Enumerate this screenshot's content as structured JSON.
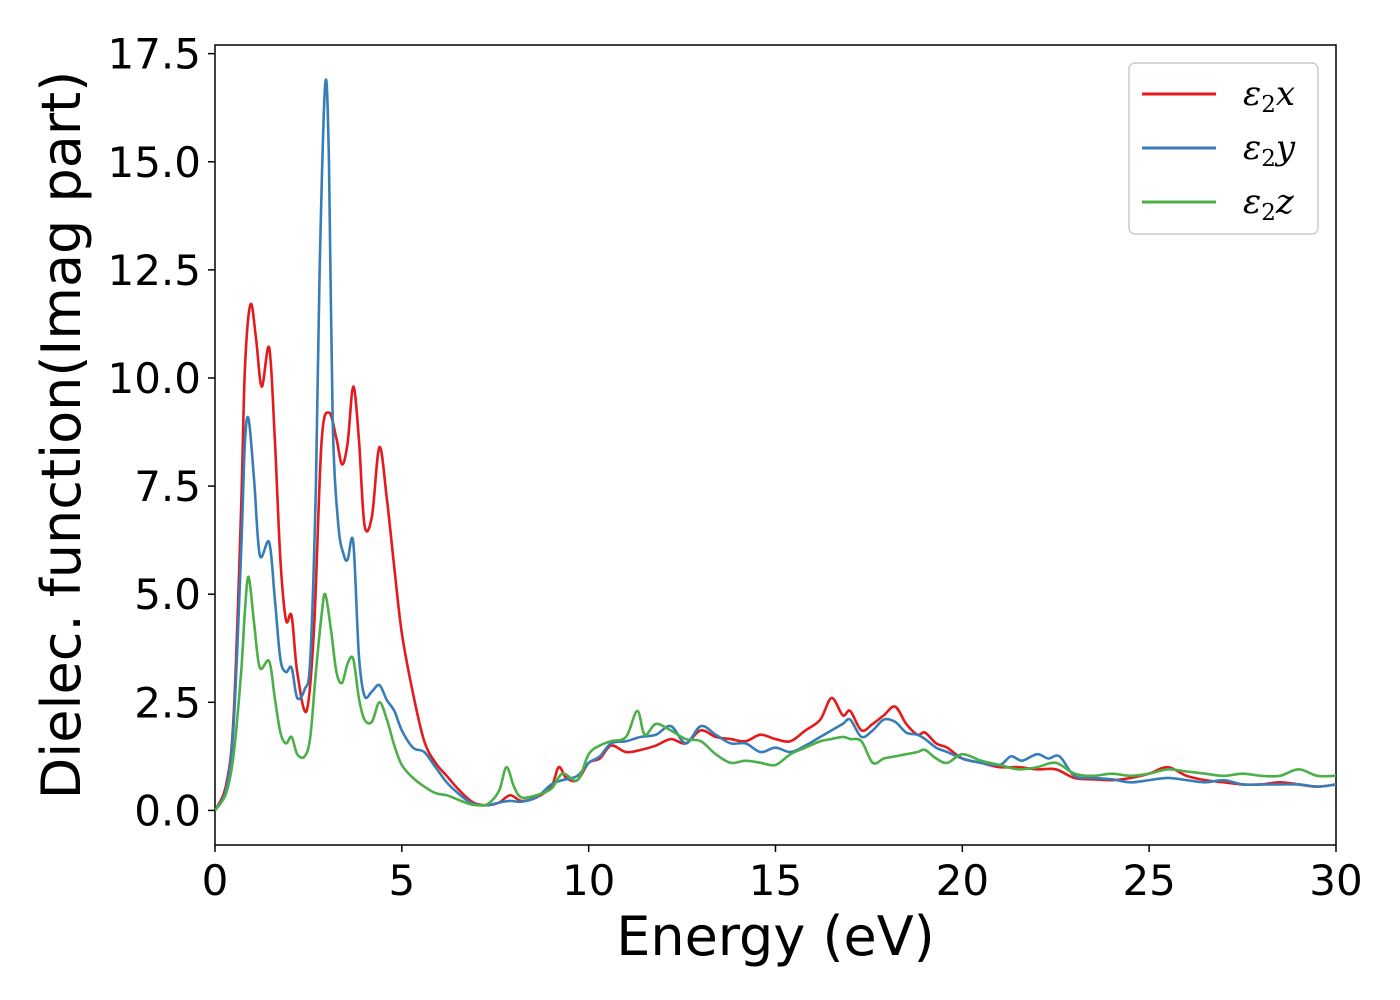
{
  "chart_data": {
    "type": "line",
    "xlabel": "Energy (eV)",
    "ylabel": "Dielec. function(Imag part)",
    "xlim": [
      0,
      30
    ],
    "ylim": [
      -0.8,
      17.7
    ],
    "xticks": [
      0,
      5,
      10,
      15,
      20,
      25,
      30
    ],
    "xtick_labels": [
      "0",
      "5",
      "10",
      "15",
      "20",
      "25",
      "30"
    ],
    "yticks": [
      0,
      2.5,
      5,
      7.5,
      10,
      12.5,
      15,
      17.5
    ],
    "ytick_labels": [
      "0.0",
      "2.5",
      "5.0",
      "7.5",
      "10.0",
      "12.5",
      "15.0",
      "17.5"
    ],
    "grid": false,
    "legend_position": "top-right",
    "series": [
      {
        "name": "ε2x",
        "label_main": "ε",
        "label_sub": "2",
        "label_tail": "x",
        "color": "#e41a1c",
        "x": [
          0,
          0.3,
          0.5,
          0.7,
          0.8,
          0.95,
          1.1,
          1.25,
          1.45,
          1.6,
          1.75,
          1.9,
          2.05,
          2.2,
          2.45,
          2.65,
          2.85,
          3.05,
          3.25,
          3.4,
          3.55,
          3.7,
          3.85,
          4.0,
          4.2,
          4.4,
          4.6,
          4.8,
          5.0,
          5.3,
          5.6,
          5.9,
          6.2,
          6.5,
          6.8,
          7.0,
          7.3,
          7.6,
          7.9,
          8.2,
          8.6,
          9.0,
          9.2,
          9.4,
          9.7,
          10.0,
          10.3,
          10.6,
          11.0,
          11.4,
          11.8,
          12.2,
          12.6,
          13.0,
          13.4,
          13.8,
          14.2,
          14.6,
          15.0,
          15.4,
          15.8,
          16.2,
          16.5,
          16.8,
          17.0,
          17.3,
          17.6,
          17.9,
          18.2,
          18.5,
          18.8,
          19.0,
          19.3,
          19.6,
          20.0,
          20.5,
          21.0,
          21.5,
          22.0,
          22.5,
          23.0,
          23.5,
          24.0,
          24.5,
          25.0,
          25.5,
          26.0,
          26.5,
          27.0,
          27.5,
          28.0,
          28.5,
          29.0,
          29.5,
          30.0
        ],
        "y": [
          0,
          0.6,
          2.2,
          7.0,
          10.2,
          11.7,
          10.9,
          9.8,
          10.7,
          8.6,
          5.8,
          4.4,
          4.5,
          3.2,
          2.3,
          4.2,
          8.5,
          9.2,
          8.6,
          8.0,
          8.5,
          9.8,
          8.6,
          6.6,
          6.8,
          8.4,
          7.2,
          5.6,
          4.1,
          2.7,
          1.6,
          1.1,
          0.8,
          0.5,
          0.25,
          0.15,
          0.12,
          0.18,
          0.35,
          0.22,
          0.3,
          0.55,
          1.0,
          0.75,
          0.7,
          1.1,
          1.2,
          1.5,
          1.35,
          1.4,
          1.5,
          1.65,
          1.55,
          1.85,
          1.7,
          1.65,
          1.6,
          1.75,
          1.65,
          1.6,
          1.85,
          2.1,
          2.6,
          2.2,
          2.3,
          1.85,
          2.0,
          2.2,
          2.4,
          2.0,
          1.75,
          1.8,
          1.55,
          1.45,
          1.2,
          1.1,
          1.0,
          1.0,
          0.95,
          0.95,
          0.75,
          0.72,
          0.7,
          0.75,
          0.85,
          1.0,
          0.8,
          0.7,
          0.65,
          0.6,
          0.6,
          0.65,
          0.6,
          0.55,
          0.6
        ]
      },
      {
        "name": "ε2y",
        "label_main": "ε",
        "label_sub": "2",
        "label_tail": "y",
        "color": "#377eb8",
        "x": [
          0,
          0.3,
          0.5,
          0.7,
          0.8,
          0.9,
          1.05,
          1.2,
          1.45,
          1.6,
          1.75,
          1.9,
          2.05,
          2.2,
          2.4,
          2.55,
          2.7,
          2.8,
          2.95,
          3.05,
          3.15,
          3.3,
          3.45,
          3.55,
          3.7,
          3.85,
          4.0,
          4.2,
          4.4,
          4.6,
          4.8,
          5.0,
          5.3,
          5.6,
          5.9,
          6.2,
          6.5,
          6.8,
          7.0,
          7.3,
          7.6,
          7.9,
          8.2,
          8.6,
          9.0,
          9.3,
          9.7,
          10.0,
          10.3,
          10.6,
          11.0,
          11.4,
          11.8,
          12.2,
          12.6,
          13.0,
          13.4,
          13.8,
          14.2,
          14.6,
          15.0,
          15.4,
          15.8,
          16.2,
          16.5,
          16.8,
          17.0,
          17.3,
          17.6,
          17.9,
          18.2,
          18.5,
          18.8,
          19.0,
          19.3,
          19.6,
          20.0,
          20.5,
          21.0,
          21.3,
          21.6,
          22.0,
          22.3,
          22.6,
          23.0,
          23.5,
          24.0,
          24.5,
          25.0,
          25.5,
          26.0,
          26.5,
          27.0,
          27.5,
          28.0,
          28.5,
          29.0,
          29.5,
          30.0
        ],
        "y": [
          0,
          0.5,
          2.0,
          6.0,
          8.5,
          9.05,
          7.6,
          5.9,
          6.2,
          4.9,
          3.5,
          3.2,
          3.3,
          2.6,
          2.8,
          3.5,
          7.5,
          12.5,
          16.8,
          15.0,
          9.0,
          6.6,
          5.9,
          5.8,
          6.2,
          3.6,
          2.65,
          2.75,
          2.9,
          2.55,
          2.3,
          1.85,
          1.45,
          1.35,
          1.0,
          0.65,
          0.4,
          0.2,
          0.13,
          0.12,
          0.18,
          0.22,
          0.2,
          0.3,
          0.6,
          0.7,
          0.8,
          1.1,
          1.25,
          1.55,
          1.6,
          1.7,
          1.75,
          1.95,
          1.55,
          1.95,
          1.75,
          1.55,
          1.55,
          1.35,
          1.45,
          1.35,
          1.5,
          1.7,
          1.85,
          2.0,
          2.1,
          1.7,
          1.85,
          2.1,
          2.05,
          1.8,
          1.75,
          1.65,
          1.45,
          1.35,
          1.2,
          1.1,
          1.05,
          1.25,
          1.15,
          1.3,
          1.2,
          1.25,
          0.8,
          0.75,
          0.72,
          0.65,
          0.7,
          0.75,
          0.7,
          0.65,
          0.7,
          0.6,
          0.6,
          0.6,
          0.6,
          0.55,
          0.6
        ]
      },
      {
        "name": "ε2z",
        "label_main": "ε",
        "label_sub": "2",
        "label_tail": "z",
        "color": "#4daf4a",
        "x": [
          0,
          0.3,
          0.5,
          0.7,
          0.8,
          0.9,
          1.05,
          1.2,
          1.45,
          1.6,
          1.75,
          1.9,
          2.05,
          2.2,
          2.4,
          2.55,
          2.7,
          2.85,
          2.95,
          3.1,
          3.25,
          3.4,
          3.55,
          3.7,
          3.85,
          4.0,
          4.2,
          4.4,
          4.6,
          4.8,
          5.0,
          5.3,
          5.6,
          5.9,
          6.2,
          6.5,
          6.8,
          7.0,
          7.3,
          7.6,
          7.8,
          8.0,
          8.2,
          8.6,
          9.0,
          9.3,
          9.7,
          10.0,
          10.3,
          10.6,
          11.0,
          11.3,
          11.5,
          11.8,
          12.2,
          12.6,
          13.0,
          13.4,
          13.8,
          14.2,
          14.6,
          15.0,
          15.4,
          15.8,
          16.2,
          16.5,
          16.8,
          17.0,
          17.3,
          17.6,
          17.9,
          18.2,
          18.5,
          18.8,
          19.0,
          19.3,
          19.6,
          20.0,
          20.5,
          21.0,
          21.5,
          22.0,
          22.5,
          23.0,
          23.5,
          24.0,
          24.5,
          25.0,
          25.5,
          26.0,
          26.5,
          27.0,
          27.5,
          28.0,
          28.5,
          29.0,
          29.5,
          30.0
        ],
        "y": [
          0,
          0.4,
          1.3,
          3.2,
          4.6,
          5.4,
          4.3,
          3.3,
          3.45,
          2.6,
          1.8,
          1.55,
          1.7,
          1.3,
          1.25,
          1.7,
          3.2,
          4.5,
          5.0,
          4.2,
          3.2,
          2.95,
          3.4,
          3.5,
          2.6,
          2.1,
          2.05,
          2.5,
          2.1,
          1.5,
          1.05,
          0.75,
          0.55,
          0.4,
          0.35,
          0.25,
          0.15,
          0.12,
          0.15,
          0.45,
          1.0,
          0.55,
          0.3,
          0.35,
          0.5,
          0.85,
          0.7,
          1.3,
          1.5,
          1.6,
          1.7,
          2.3,
          1.75,
          2.0,
          1.85,
          1.65,
          1.6,
          1.3,
          1.1,
          1.15,
          1.1,
          1.05,
          1.3,
          1.45,
          1.6,
          1.65,
          1.7,
          1.65,
          1.6,
          1.1,
          1.2,
          1.25,
          1.3,
          1.35,
          1.4,
          1.2,
          1.1,
          1.3,
          1.15,
          1.05,
          0.95,
          1.0,
          1.1,
          0.85,
          0.8,
          0.85,
          0.8,
          0.85,
          0.95,
          0.9,
          0.85,
          0.8,
          0.85,
          0.8,
          0.8,
          0.95,
          0.8,
          0.8
        ]
      }
    ]
  }
}
